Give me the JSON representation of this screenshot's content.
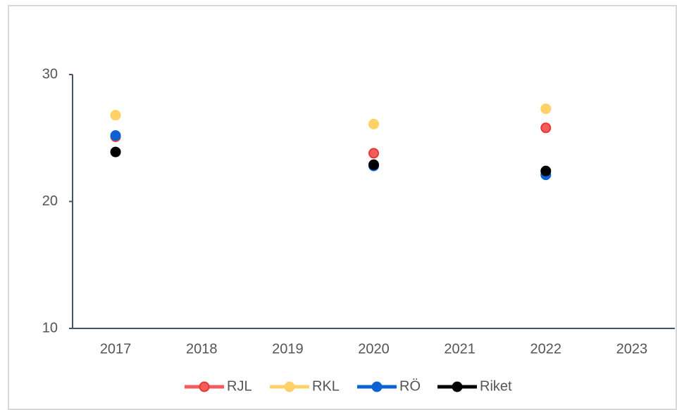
{
  "chart_data": {
    "type": "line",
    "categories": [
      "2017",
      "2018",
      "2019",
      "2020",
      "2021",
      "2022",
      "2023"
    ],
    "series": [
      {
        "name": "RJL",
        "color": "#f25c5c",
        "values": [
          25.1,
          null,
          null,
          23.8,
          null,
          25.8,
          null
        ]
      },
      {
        "name": "RKL",
        "color": "#ffd166",
        "values": [
          26.8,
          null,
          null,
          26.1,
          null,
          27.3,
          null
        ]
      },
      {
        "name": "RÖ",
        "color": "#0b63d1",
        "values": [
          25.2,
          null,
          null,
          22.8,
          null,
          22.1,
          null
        ]
      },
      {
        "name": "Riket",
        "color": "#000000",
        "values": [
          23.9,
          null,
          null,
          22.9,
          null,
          22.4,
          null
        ]
      }
    ],
    "ylim": [
      10,
      30
    ],
    "yticks": [
      10,
      20,
      30
    ],
    "legend": "bottom"
  }
}
